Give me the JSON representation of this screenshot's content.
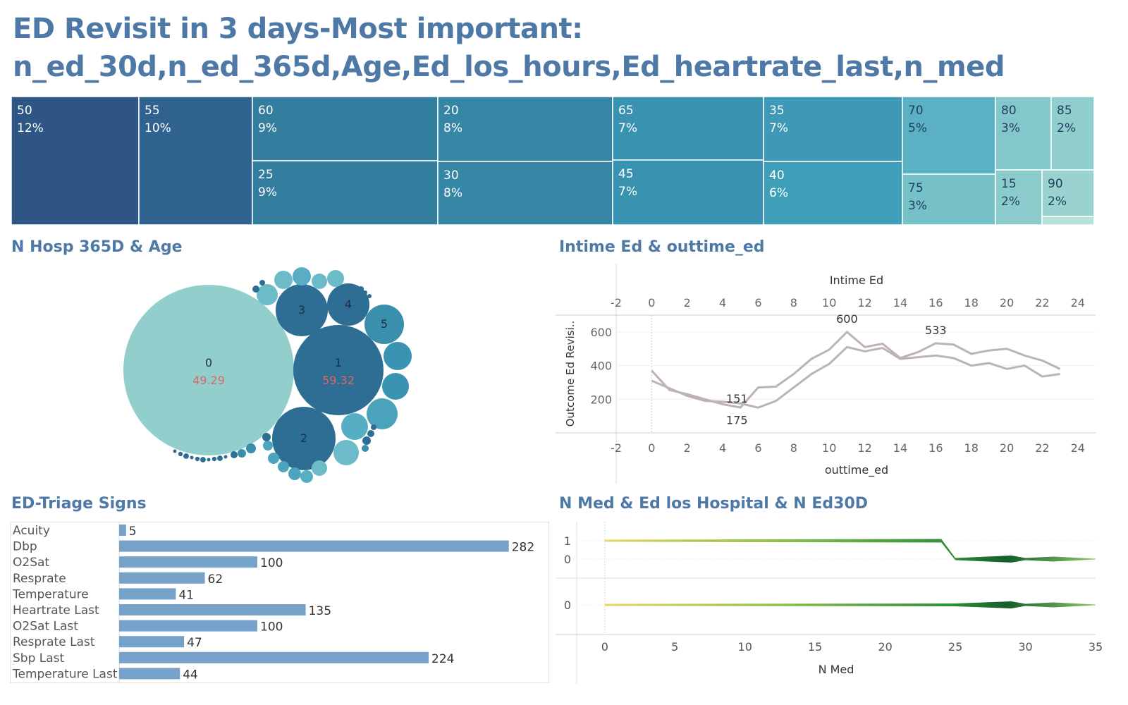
{
  "page": {
    "title_line1": "ED Revisit in 3 days-Most important:",
    "title_line2": "n_ed_30d,n_ed_365d,Age,Ed_los_hours,Ed_heartrate_last,n_med"
  },
  "colors": {
    "title": "#4e79a7",
    "treemap_dark": "#2e5583",
    "treemap_light": "#a6d8d5",
    "bubble_large": "#8fd0cc",
    "bubble_dark": "#2e6e94",
    "bar": "#75a0c7",
    "line": "#bfb5b3",
    "label_red": "#e06666"
  },
  "chart_data": [
    {
      "type": "treemap",
      "items": [
        {
          "label": "50",
          "pct": "12%"
        },
        {
          "label": "55",
          "pct": "10%"
        },
        {
          "label": "60",
          "pct": "9%"
        },
        {
          "label": "25",
          "pct": "9%"
        },
        {
          "label": "20",
          "pct": "8%"
        },
        {
          "label": "30",
          "pct": "8%"
        },
        {
          "label": "65",
          "pct": "7%"
        },
        {
          "label": "45",
          "pct": "7%"
        },
        {
          "label": "35",
          "pct": "7%"
        },
        {
          "label": "40",
          "pct": "6%"
        },
        {
          "label": "70",
          "pct": "5%"
        },
        {
          "label": "75",
          "pct": "3%"
        },
        {
          "label": "80",
          "pct": "3%"
        },
        {
          "label": "85",
          "pct": "2%"
        },
        {
          "label": "15",
          "pct": "2%"
        },
        {
          "label": "90",
          "pct": "2%"
        },
        {
          "label": "",
          "pct": ""
        }
      ]
    },
    {
      "type": "bubble",
      "title": "N Hosp 365D & Age",
      "labeled": [
        {
          "label": "0",
          "value": "49.29"
        },
        {
          "label": "1",
          "value": "59.32"
        },
        {
          "label": "2",
          "value": ""
        },
        {
          "label": "3",
          "value": ""
        },
        {
          "label": "4",
          "value": ""
        },
        {
          "label": "5",
          "value": ""
        }
      ]
    },
    {
      "type": "line",
      "title": "Intime Ed & outtime_ed",
      "top_axis_label": "Intime Ed",
      "bottom_axis_label": "outtime_ed",
      "ylabel": "Outcome Ed Revisi..",
      "xlim": [
        -2,
        25
      ],
      "ylim": [
        0,
        700
      ],
      "x_ticks": [
        -2,
        0,
        2,
        4,
        6,
        8,
        10,
        12,
        14,
        16,
        18,
        20,
        22,
        24
      ],
      "y_ticks": [
        200,
        400,
        600
      ],
      "x": [
        0,
        1,
        2,
        3,
        4,
        5,
        6,
        7,
        8,
        9,
        10,
        11,
        12,
        13,
        14,
        15,
        16,
        17,
        18,
        19,
        20,
        21,
        22,
        23
      ],
      "series": [
        {
          "values": [
            370,
            255,
            230,
            200,
            170,
            151,
            270,
            275,
            350,
            440,
            495,
            600,
            510,
            530,
            445,
            480,
            533,
            525,
            470,
            490,
            500,
            460,
            430,
            380
          ]
        },
        {
          "values": [
            310,
            265,
            220,
            190,
            185,
            175,
            150,
            190,
            270,
            350,
            410,
            510,
            485,
            505,
            440,
            450,
            460,
            445,
            400,
            415,
            380,
            400,
            335,
            350
          ]
        }
      ],
      "annotations": [
        {
          "x": 11,
          "y": 600,
          "text": "600"
        },
        {
          "x": 16,
          "y": 533,
          "text": "533"
        },
        {
          "x": 5,
          "y": 151,
          "text": "151"
        },
        {
          "x": 5,
          "y": 175,
          "text": "175"
        }
      ]
    },
    {
      "type": "bar",
      "title": "ED-Triage Signs",
      "categories": [
        "Acuity",
        "Dbp",
        "O2Sat",
        "Resprate",
        "Temperature",
        "Heartrate Last",
        "O2Sat Last",
        "Resprate Last",
        "Sbp Last",
        "Temperature Last"
      ],
      "values": [
        5,
        282,
        100,
        62,
        41,
        135,
        100,
        47,
        224,
        44
      ]
    },
    {
      "type": "area",
      "title": "N Med & Ed los Hospital & N Ed30D",
      "xlabel": "N Med",
      "xlim": [
        -2,
        35
      ],
      "x_ticks": [
        0,
        5,
        10,
        15,
        20,
        25,
        30,
        35
      ],
      "panels": [
        {
          "y_ticks": [
            1,
            0
          ],
          "x": [
            0,
            24,
            25,
            35
          ],
          "values": [
            1,
            1,
            0,
            0
          ]
        },
        {
          "y_ticks": [
            0
          ],
          "x": [
            0,
            35
          ],
          "values": [
            0,
            0
          ]
        }
      ]
    }
  ]
}
